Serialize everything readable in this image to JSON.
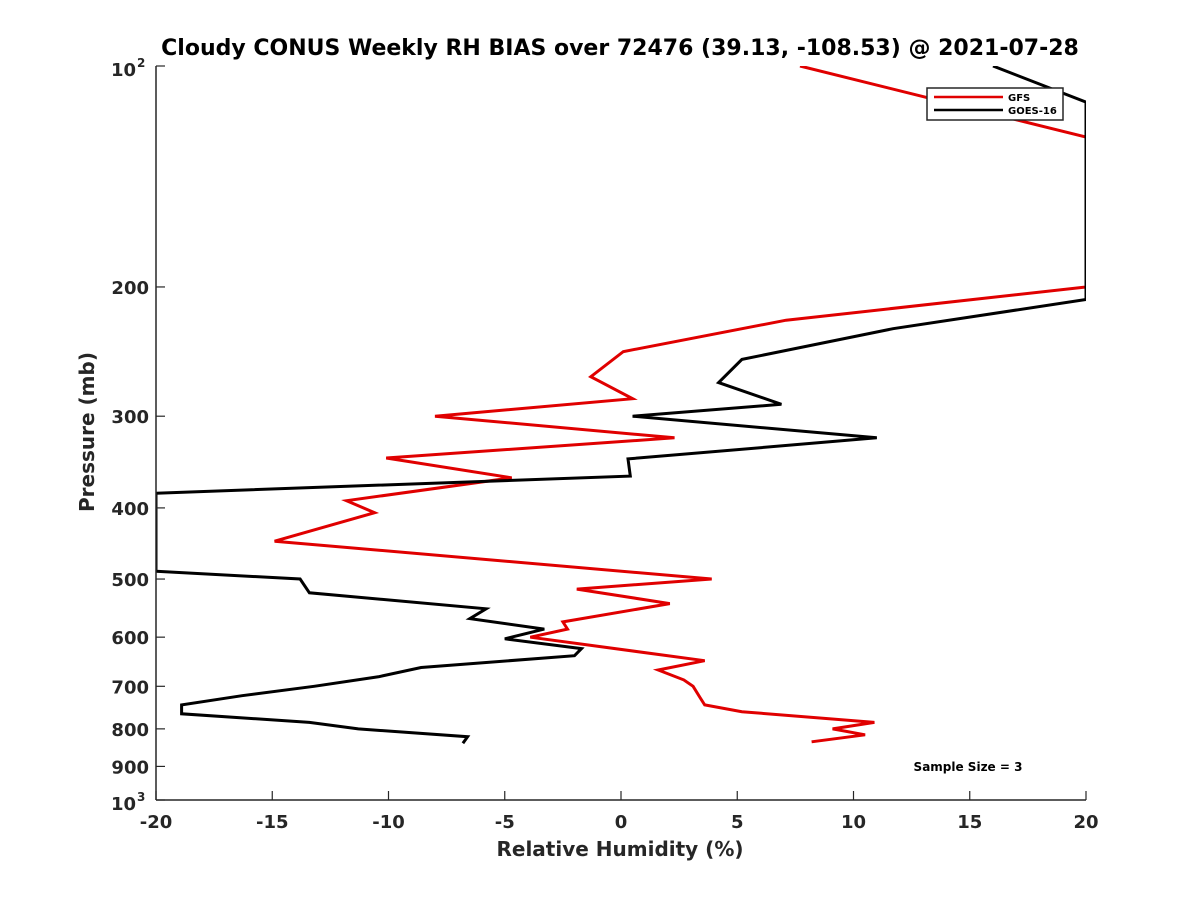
{
  "chart_data": {
    "type": "line",
    "title": "Cloudy CONUS Weekly RH BIAS over 72476 (39.13, -108.53) @ 2021-07-28",
    "xlabel": "Relative Humidity (%)",
    "ylabel": "Pressure (mb)",
    "xlim": [
      -20,
      20
    ],
    "ylim": [
      100,
      1000
    ],
    "y_scale": "log",
    "y_reversed": true,
    "grid": false,
    "legend_position": "top-right",
    "x_ticks": [
      "-20",
      "-15",
      "-10",
      "-5",
      "0",
      "5",
      "10",
      "15",
      "20"
    ],
    "y_ticks": [
      {
        "value": 100,
        "base": "10",
        "exp": "2"
      },
      {
        "value": 200,
        "label": "200"
      },
      {
        "value": 300,
        "label": "300"
      },
      {
        "value": 400,
        "label": "400"
      },
      {
        "value": 500,
        "label": "500"
      },
      {
        "value": 600,
        "label": "600"
      },
      {
        "value": 700,
        "label": "700"
      },
      {
        "value": 800,
        "label": "800"
      },
      {
        "value": 900,
        "label": "900"
      },
      {
        "value": 1000,
        "base": "10",
        "exp": "3"
      }
    ],
    "annotation": "Sample Size = 3",
    "series": [
      {
        "name": "GFS",
        "color": "#e00000",
        "points": [
          [
            7.7,
            100
          ],
          [
            20,
            125
          ],
          [
            20,
            200
          ],
          [
            7.1,
            222
          ],
          [
            0.1,
            245
          ],
          [
            -1.3,
            265
          ],
          [
            0.5,
            284
          ],
          [
            -8.0,
            300
          ],
          [
            2.3,
            321
          ],
          [
            -10.1,
            342
          ],
          [
            -4.7,
            364
          ],
          [
            -11.8,
            391
          ],
          [
            -10.6,
            406
          ],
          [
            -14.9,
            444
          ],
          [
            3.9,
            500
          ],
          [
            -1.9,
            516
          ],
          [
            2.1,
            540
          ],
          [
            -2.5,
            572
          ],
          [
            -2.3,
            585
          ],
          [
            -3.9,
            600
          ],
          [
            3.6,
            646
          ],
          [
            1.6,
            665
          ],
          [
            2.7,
            686
          ],
          [
            3.1,
            700
          ],
          [
            3.4,
            725
          ],
          [
            3.6,
            742
          ],
          [
            5.2,
            758
          ],
          [
            10.9,
            784
          ],
          [
            9.1,
            800
          ],
          [
            10.5,
            815
          ],
          [
            8.2,
            833
          ]
        ]
      },
      {
        "name": "GOES-16",
        "color": "#000000",
        "points": [
          [
            16.0,
            100
          ],
          [
            20,
            112
          ],
          [
            20,
            208
          ],
          [
            11.7,
            228
          ],
          [
            5.2,
            251
          ],
          [
            4.2,
            270
          ],
          [
            6.9,
            289
          ],
          [
            0.5,
            300
          ],
          [
            11.0,
            321
          ],
          [
            0.3,
            343
          ],
          [
            0.4,
            362
          ],
          [
            -20,
            382
          ],
          [
            -20,
            488
          ],
          [
            -13.8,
            500
          ],
          [
            -13.4,
            522
          ],
          [
            -5.8,
            549
          ],
          [
            -6.5,
            566
          ],
          [
            -3.3,
            585
          ],
          [
            -5.0,
            603
          ],
          [
            -1.7,
            622
          ],
          [
            -2.0,
            636
          ],
          [
            -8.6,
            660
          ],
          [
            -10.4,
            679
          ],
          [
            -13.2,
            700
          ],
          [
            -16.3,
            721
          ],
          [
            -18.9,
            742
          ],
          [
            -18.9,
            763
          ],
          [
            -13.4,
            784
          ],
          [
            -11.3,
            800
          ],
          [
            -6.6,
            820
          ],
          [
            -6.8,
            837
          ]
        ]
      }
    ]
  }
}
